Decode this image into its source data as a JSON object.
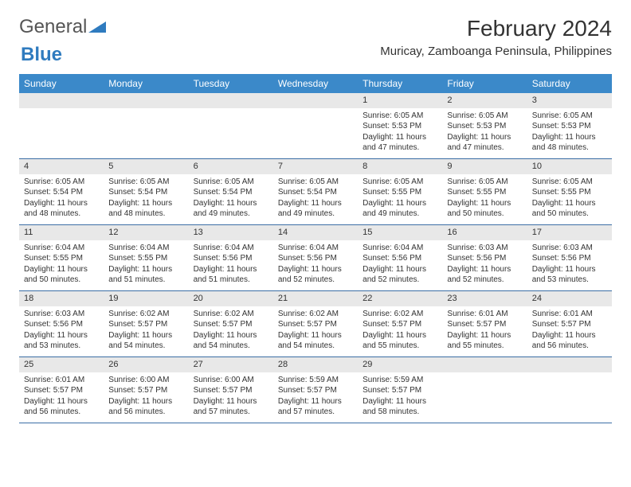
{
  "logo": {
    "general": "General",
    "blue": "Blue"
  },
  "title": "February 2024",
  "location": "Muricay, Zamboanga Peninsula, Philippines",
  "colors": {
    "header_bg": "#3b89c9",
    "header_text": "#ffffff",
    "date_bg": "#e8e8e8",
    "week_border": "#3b6ea5",
    "logo_blue": "#2f7bbf",
    "text": "#333333",
    "background": "#ffffff"
  },
  "fonts": {
    "title_size": 28,
    "location_size": 15,
    "day_header_size": 12,
    "date_size": 11,
    "body_size": 10
  },
  "day_names": [
    "Sunday",
    "Monday",
    "Tuesday",
    "Wednesday",
    "Thursday",
    "Friday",
    "Saturday"
  ],
  "weeks": [
    [
      {
        "date": "",
        "empty": true
      },
      {
        "date": "",
        "empty": true
      },
      {
        "date": "",
        "empty": true
      },
      {
        "date": "",
        "empty": true
      },
      {
        "date": "1",
        "sunrise": "Sunrise: 6:05 AM",
        "sunset": "Sunset: 5:53 PM",
        "daylight": "Daylight: 11 hours and 47 minutes."
      },
      {
        "date": "2",
        "sunrise": "Sunrise: 6:05 AM",
        "sunset": "Sunset: 5:53 PM",
        "daylight": "Daylight: 11 hours and 47 minutes."
      },
      {
        "date": "3",
        "sunrise": "Sunrise: 6:05 AM",
        "sunset": "Sunset: 5:53 PM",
        "daylight": "Daylight: 11 hours and 48 minutes."
      }
    ],
    [
      {
        "date": "4",
        "sunrise": "Sunrise: 6:05 AM",
        "sunset": "Sunset: 5:54 PM",
        "daylight": "Daylight: 11 hours and 48 minutes."
      },
      {
        "date": "5",
        "sunrise": "Sunrise: 6:05 AM",
        "sunset": "Sunset: 5:54 PM",
        "daylight": "Daylight: 11 hours and 48 minutes."
      },
      {
        "date": "6",
        "sunrise": "Sunrise: 6:05 AM",
        "sunset": "Sunset: 5:54 PM",
        "daylight": "Daylight: 11 hours and 49 minutes."
      },
      {
        "date": "7",
        "sunrise": "Sunrise: 6:05 AM",
        "sunset": "Sunset: 5:54 PM",
        "daylight": "Daylight: 11 hours and 49 minutes."
      },
      {
        "date": "8",
        "sunrise": "Sunrise: 6:05 AM",
        "sunset": "Sunset: 5:55 PM",
        "daylight": "Daylight: 11 hours and 49 minutes."
      },
      {
        "date": "9",
        "sunrise": "Sunrise: 6:05 AM",
        "sunset": "Sunset: 5:55 PM",
        "daylight": "Daylight: 11 hours and 50 minutes."
      },
      {
        "date": "10",
        "sunrise": "Sunrise: 6:05 AM",
        "sunset": "Sunset: 5:55 PM",
        "daylight": "Daylight: 11 hours and 50 minutes."
      }
    ],
    [
      {
        "date": "11",
        "sunrise": "Sunrise: 6:04 AM",
        "sunset": "Sunset: 5:55 PM",
        "daylight": "Daylight: 11 hours and 50 minutes."
      },
      {
        "date": "12",
        "sunrise": "Sunrise: 6:04 AM",
        "sunset": "Sunset: 5:55 PM",
        "daylight": "Daylight: 11 hours and 51 minutes."
      },
      {
        "date": "13",
        "sunrise": "Sunrise: 6:04 AM",
        "sunset": "Sunset: 5:56 PM",
        "daylight": "Daylight: 11 hours and 51 minutes."
      },
      {
        "date": "14",
        "sunrise": "Sunrise: 6:04 AM",
        "sunset": "Sunset: 5:56 PM",
        "daylight": "Daylight: 11 hours and 52 minutes."
      },
      {
        "date": "15",
        "sunrise": "Sunrise: 6:04 AM",
        "sunset": "Sunset: 5:56 PM",
        "daylight": "Daylight: 11 hours and 52 minutes."
      },
      {
        "date": "16",
        "sunrise": "Sunrise: 6:03 AM",
        "sunset": "Sunset: 5:56 PM",
        "daylight": "Daylight: 11 hours and 52 minutes."
      },
      {
        "date": "17",
        "sunrise": "Sunrise: 6:03 AM",
        "sunset": "Sunset: 5:56 PM",
        "daylight": "Daylight: 11 hours and 53 minutes."
      }
    ],
    [
      {
        "date": "18",
        "sunrise": "Sunrise: 6:03 AM",
        "sunset": "Sunset: 5:56 PM",
        "daylight": "Daylight: 11 hours and 53 minutes."
      },
      {
        "date": "19",
        "sunrise": "Sunrise: 6:02 AM",
        "sunset": "Sunset: 5:57 PM",
        "daylight": "Daylight: 11 hours and 54 minutes."
      },
      {
        "date": "20",
        "sunrise": "Sunrise: 6:02 AM",
        "sunset": "Sunset: 5:57 PM",
        "daylight": "Daylight: 11 hours and 54 minutes."
      },
      {
        "date": "21",
        "sunrise": "Sunrise: 6:02 AM",
        "sunset": "Sunset: 5:57 PM",
        "daylight": "Daylight: 11 hours and 54 minutes."
      },
      {
        "date": "22",
        "sunrise": "Sunrise: 6:02 AM",
        "sunset": "Sunset: 5:57 PM",
        "daylight": "Daylight: 11 hours and 55 minutes."
      },
      {
        "date": "23",
        "sunrise": "Sunrise: 6:01 AM",
        "sunset": "Sunset: 5:57 PM",
        "daylight": "Daylight: 11 hours and 55 minutes."
      },
      {
        "date": "24",
        "sunrise": "Sunrise: 6:01 AM",
        "sunset": "Sunset: 5:57 PM",
        "daylight": "Daylight: 11 hours and 56 minutes."
      }
    ],
    [
      {
        "date": "25",
        "sunrise": "Sunrise: 6:01 AM",
        "sunset": "Sunset: 5:57 PM",
        "daylight": "Daylight: 11 hours and 56 minutes."
      },
      {
        "date": "26",
        "sunrise": "Sunrise: 6:00 AM",
        "sunset": "Sunset: 5:57 PM",
        "daylight": "Daylight: 11 hours and 56 minutes."
      },
      {
        "date": "27",
        "sunrise": "Sunrise: 6:00 AM",
        "sunset": "Sunset: 5:57 PM",
        "daylight": "Daylight: 11 hours and 57 minutes."
      },
      {
        "date": "28",
        "sunrise": "Sunrise: 5:59 AM",
        "sunset": "Sunset: 5:57 PM",
        "daylight": "Daylight: 11 hours and 57 minutes."
      },
      {
        "date": "29",
        "sunrise": "Sunrise: 5:59 AM",
        "sunset": "Sunset: 5:57 PM",
        "daylight": "Daylight: 11 hours and 58 minutes."
      },
      {
        "date": "",
        "empty": true
      },
      {
        "date": "",
        "empty": true
      }
    ]
  ]
}
